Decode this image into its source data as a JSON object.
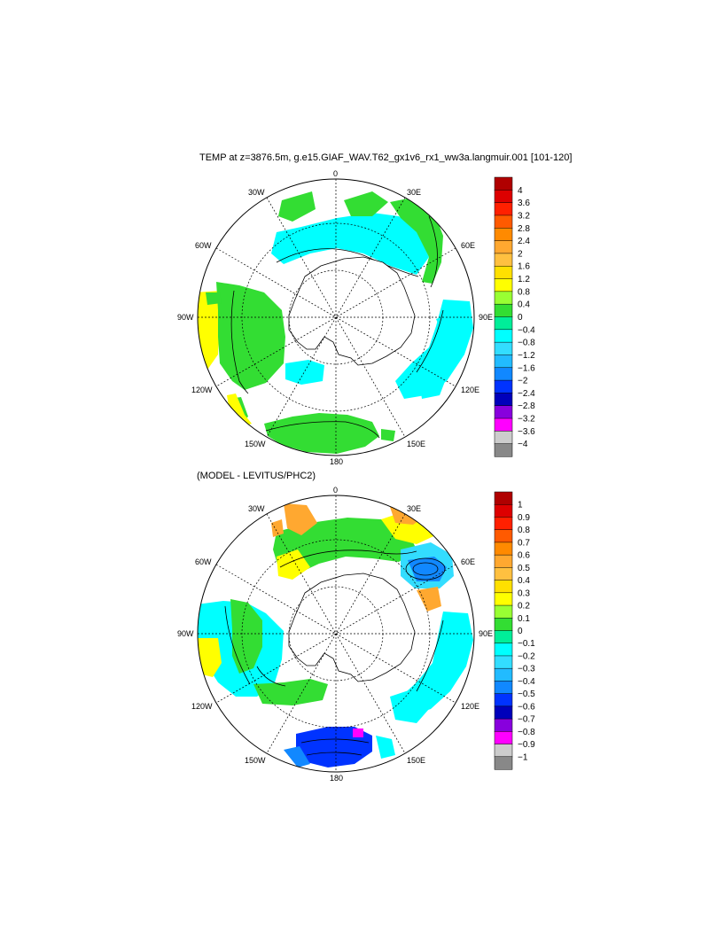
{
  "titles": {
    "top": "TEMP at z=3876.5m, g.e15.GIAF_WAV.T62_gx1v6_rx1_ww3a.langmuir.001 [101-120]",
    "bottom": "(MODEL - LEVITUS/PHC2)"
  },
  "longitude_labels": {
    "l0": "0",
    "l30e": "30E",
    "l60e": "60E",
    "l90e": "90E",
    "l120e": "120E",
    "l150e": "150E",
    "l180": "180",
    "l150w": "150W",
    "l120w": "120W",
    "l90w": "90W",
    "l60w": "60W",
    "l30w": "30W"
  },
  "colorbar_top": {
    "ticks": [
      "4",
      "3.6",
      "3.2",
      "2.8",
      "2.4",
      "2",
      "1.6",
      "1.2",
      "0.8",
      "0.4",
      "0",
      "−0.4",
      "−0.8",
      "−1.2",
      "−1.6",
      "−2",
      "−2.4",
      "−2.8",
      "−3.2",
      "−3.6",
      "−4"
    ]
  },
  "colorbar_bottom": {
    "ticks": [
      "1",
      "0.9",
      "0.8",
      "0.7",
      "0.6",
      "0.5",
      "0.4",
      "0.3",
      "0.2",
      "0.1",
      "0",
      "−0.1",
      "−0.2",
      "−0.3",
      "−0.4",
      "−0.5",
      "−0.6",
      "−0.7",
      "−0.8",
      "−0.9",
      "−1"
    ]
  },
  "colorbar_colors": [
    "#b00000",
    "#dd0000",
    "#ff2000",
    "#ff5a00",
    "#ff8a00",
    "#ffa830",
    "#ffc040",
    "#ffe000",
    "#ffff00",
    "#99ff33",
    "#33dd33",
    "#00ee99",
    "#00ffff",
    "#33ddff",
    "#22bbff",
    "#1188ff",
    "#0033ff",
    "#0000bb",
    "#8800dd",
    "#ff00ff",
    "#cccccc",
    "#888888"
  ],
  "legend_colors": {
    "yellow": "#ffff00",
    "green": "#33dd33",
    "cyan": "#00ffff",
    "blue": "#0033ff",
    "orange": "#ffa830"
  }
}
